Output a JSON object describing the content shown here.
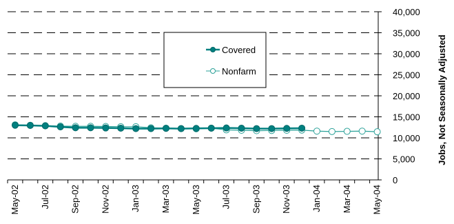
{
  "chart_data": {
    "type": "line",
    "title": "",
    "xlabel": "",
    "ylabel": "Jobs, Not Seasonally Adjusted",
    "ylim": [
      0,
      40000
    ],
    "yticks": [
      0,
      5000,
      10000,
      15000,
      20000,
      25000,
      30000,
      35000,
      40000
    ],
    "ytick_labels": [
      "0",
      "5,000",
      "10,000",
      "15,000",
      "20,000",
      "25,000",
      "30,000",
      "35,000",
      "40,000"
    ],
    "y_axis_side": "right",
    "grid": "horizontal dashed",
    "legend_position": "upper-center",
    "x": [
      "May-02",
      "Jun-02",
      "Jul-02",
      "Aug-02",
      "Sep-02",
      "Oct-02",
      "Nov-02",
      "Dec-02",
      "Jan-03",
      "Feb-03",
      "Mar-03",
      "Apr-03",
      "May-03",
      "Jun-03",
      "Jul-03",
      "Aug-03",
      "Sep-03",
      "Oct-03",
      "Nov-03",
      "Dec-03",
      "Jan-04",
      "Feb-04",
      "Mar-04",
      "Apr-04",
      "May-04"
    ],
    "x_tick_labels": [
      "May-02",
      "Jul-02",
      "Sep-02",
      "Nov-02",
      "Jan-03",
      "Mar-03",
      "May-03",
      "Jul-03",
      "Sep-03",
      "Nov-03",
      "Jan-04",
      "Mar-04",
      "May-04"
    ],
    "series": [
      {
        "name": "Covered",
        "color": "#008080",
        "marker": "filled-circle",
        "values": [
          13000,
          12950,
          12850,
          12600,
          12400,
          12400,
          12350,
          12300,
          12200,
          12200,
          12250,
          12200,
          12250,
          12300,
          12350,
          12300,
          12200,
          12200,
          12250,
          12300,
          null,
          null,
          null,
          null,
          null
        ]
      },
      {
        "name": "Nonfarm",
        "color": "#2aa198",
        "marker": "open-circle",
        "values": [
          13100,
          13000,
          12900,
          12800,
          12750,
          12750,
          12700,
          12650,
          12650,
          12400,
          12300,
          12200,
          12150,
          12300,
          11900,
          11800,
          11700,
          11750,
          11800,
          11850,
          11600,
          11500,
          11550,
          11600,
          11450
        ]
      }
    ]
  }
}
